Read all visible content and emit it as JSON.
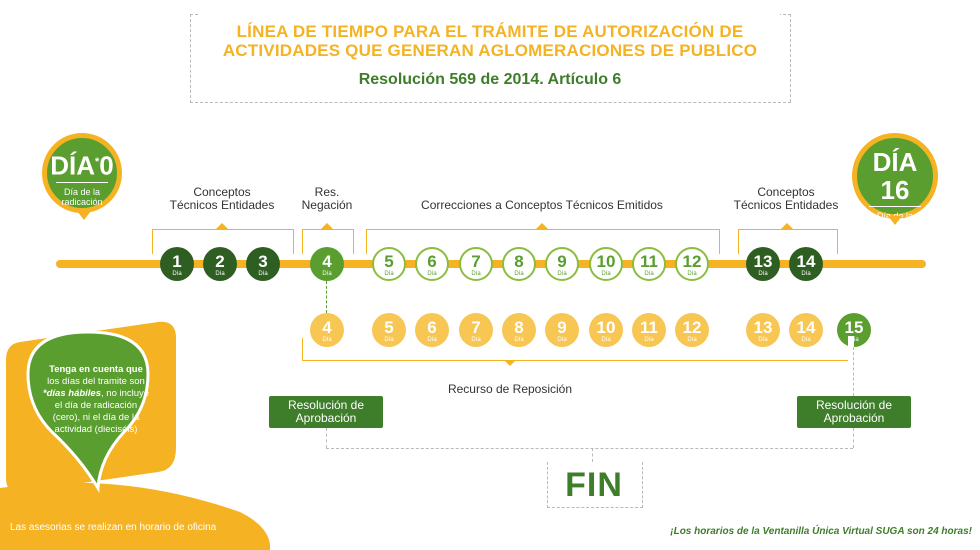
{
  "header": {
    "title_line1": "LÍNEA DE TIEMPO PARA EL TRÁMITE DE AUTORIZACIÓN DE",
    "title_line2": "ACTIVIDADES QUE GENERAN AGLOMERACIONES DE PUBLICO",
    "subtitle": "Resolución 569 de 2014. Artículo 6"
  },
  "start_badge": {
    "title": "DÍA",
    "star": "*",
    "number": "0",
    "caption_line1": "Día de la",
    "caption_line2": "radicación"
  },
  "end_badge": {
    "title": "DÍA 16",
    "caption_line1": "Día de la",
    "caption_line2": "actividad"
  },
  "groups": {
    "conceptos_1_line1": "Conceptos",
    "conceptos_1_line2": "Técnicos Entidades",
    "res_neg_line1": "Res.",
    "res_neg_line2": "Negación",
    "correcciones": "Correcciones a Conceptos Técnicos Emitidos",
    "conceptos_2_line1": "Conceptos",
    "conceptos_2_line2": "Técnicos Entidades",
    "recurso": "Recurso de Reposición"
  },
  "day_word": "Día",
  "top_days": [
    "1",
    "2",
    "3",
    "4",
    "5",
    "6",
    "7",
    "8",
    "9",
    "10",
    "11",
    "12",
    "13",
    "14"
  ],
  "bottom_days": [
    "4",
    "5",
    "6",
    "7",
    "8",
    "9",
    "10",
    "11",
    "12",
    "13",
    "14",
    "15"
  ],
  "buttons": {
    "res_aprob_left_line1": "Resolución de",
    "res_aprob_left_line2": "Aprobación",
    "res_aprob_right_line1": "Resolución de",
    "res_aprob_right_line2": "Aprobación"
  },
  "fin": "FIN",
  "note": {
    "line1": "Tenga en cuenta que",
    "line2": "los días del tramite son",
    "line3_em": "*días hábiles",
    "line3_rest": ", no incluye",
    "line4": "el día de radicación",
    "line5": "(cero), ni el día de la",
    "line6": "actividad (dieciséis)"
  },
  "footer": {
    "left": "Las asesorias se realizan en horario de oficina",
    "right": "¡Los horarios de la Ventanilla Única Virtual SUGA son 24 horas!"
  },
  "colors": {
    "yellow": "#f5b324",
    "green": "#5a9e2f",
    "dark_green": "#2e5e22"
  }
}
